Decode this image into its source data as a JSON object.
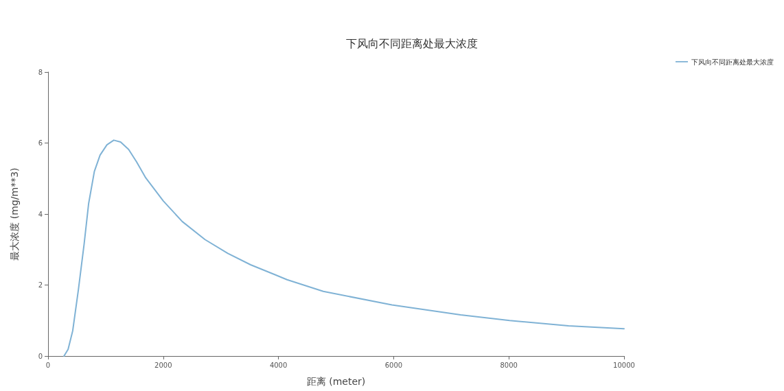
{
  "chart_data": {
    "type": "line",
    "title": "下风向不同距离处最大浓度",
    "xlabel": "距离 (meter)",
    "ylabel": "最大浓度 (mg/m**3)",
    "xlim": [
      0,
      10000
    ],
    "xticks": [
      0,
      2000,
      4000,
      6000,
      8000,
      10000
    ],
    "ylim": [
      0,
      8
    ],
    "yticks": [
      0,
      2,
      4,
      6,
      8
    ],
    "grid": false,
    "legend": "top right",
    "marker": "none",
    "line_style": "solid",
    "series": [
      {
        "name": "下风向不同距离处最大浓度",
        "color": "#7fb2d5",
        "x": [
          277,
          348,
          428,
          527,
          626,
          705,
          804,
          903,
          1022,
          1141,
          1259,
          1398,
          1537,
          1695,
          2000,
          2329,
          2725,
          3121,
          3517,
          3927,
          4150,
          4778,
          5970,
          7162,
          8014,
          9036,
          10000
        ],
        "values": [
          0,
          0.19,
          0.71,
          1.87,
          3.15,
          4.3,
          5.2,
          5.66,
          5.95,
          6.08,
          6.03,
          5.82,
          5.47,
          5.02,
          4.37,
          3.79,
          3.28,
          2.89,
          2.57,
          2.3,
          2.15,
          1.82,
          1.44,
          1.16,
          1.0,
          0.85,
          0.77
        ]
      }
    ]
  }
}
